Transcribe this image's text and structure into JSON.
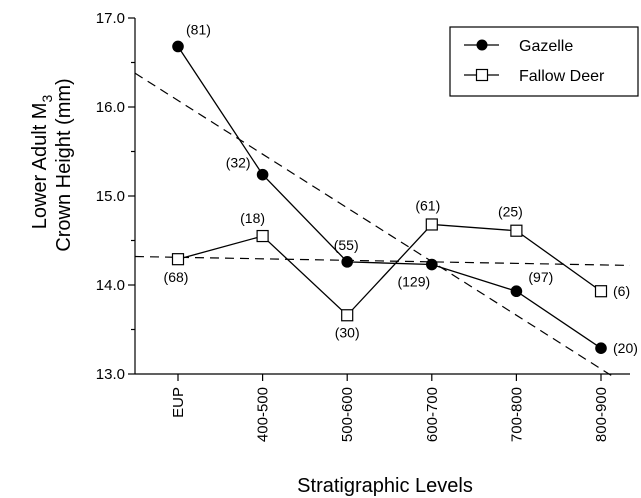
{
  "chart_data": {
    "type": "line",
    "xlabel": "Stratigraphic Levels",
    "ylabel_line1_base": "Lower Adult M",
    "ylabel_line1_sub": "3",
    "ylabel_line2": "Crown Height (mm)",
    "categories": [
      "EUP",
      "400-500",
      "500-600",
      "600-700",
      "700-800",
      "800-900"
    ],
    "ylim": [
      13.0,
      17.0
    ],
    "yticks": [
      "13.0",
      "14.0",
      "15.0",
      "16.0",
      "17.0"
    ],
    "yticks_values": [
      13.0,
      14.0,
      15.0,
      16.0,
      17.0
    ],
    "grid": false,
    "legend_position": "top-right",
    "series": [
      {
        "name": "Gazelle",
        "marker": "filled-circle",
        "values": [
          16.68,
          15.24,
          14.26,
          14.23,
          13.93,
          13.29
        ],
        "labels": [
          "(81)",
          "(32)",
          "(55)",
          "(129)",
          "(97)",
          "(20)"
        ],
        "trend": [
          16.38,
          15.64,
          14.89,
          14.15,
          13.4,
          12.95
        ]
      },
      {
        "name": "Fallow Deer",
        "marker": "open-square",
        "values": [
          14.29,
          14.55,
          13.66,
          14.68,
          14.61,
          13.93
        ],
        "labels": [
          "(68)",
          "(18)",
          "(30)",
          "(61)",
          "(25)",
          "(6)"
        ],
        "trend": [
          14.32,
          14.22
        ]
      }
    ]
  }
}
